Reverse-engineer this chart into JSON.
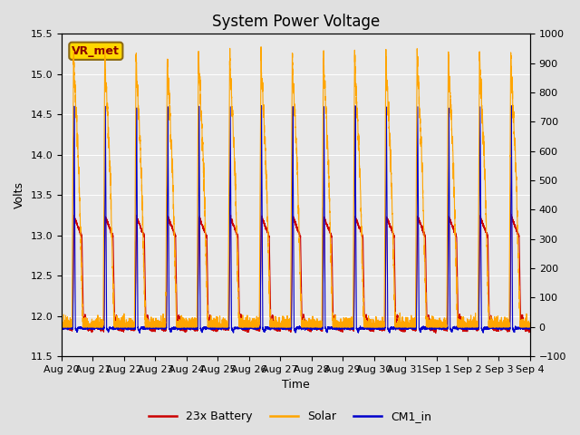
{
  "title": "System Power Voltage",
  "xlabel": "Time",
  "ylabel": "Volts",
  "ylim_left": [
    11.5,
    15.5
  ],
  "ylim_right": [
    -100,
    1000
  ],
  "yticks_left": [
    11.5,
    12.0,
    12.5,
    13.0,
    13.5,
    14.0,
    14.5,
    15.0,
    15.5
  ],
  "yticks_right": [
    -100,
    0,
    100,
    200,
    300,
    400,
    500,
    600,
    700,
    800,
    900,
    1000
  ],
  "total_days": 15.0,
  "num_cycles": 15,
  "background_color": "#e0e0e0",
  "plot_bg_color": "#e8e8e8",
  "color_battery": "#cc0000",
  "color_solar": "#ffa500",
  "color_cm1": "#0000cc",
  "legend_labels": [
    "23x Battery",
    "Solar",
    "CM1_in"
  ],
  "annotation_text": "VR_met",
  "annotation_box_color": "#ffd700",
  "annotation_text_color": "#8b0000",
  "title_fontsize": 12,
  "axis_fontsize": 9,
  "legend_fontsize": 9,
  "linewidth": 0.8
}
